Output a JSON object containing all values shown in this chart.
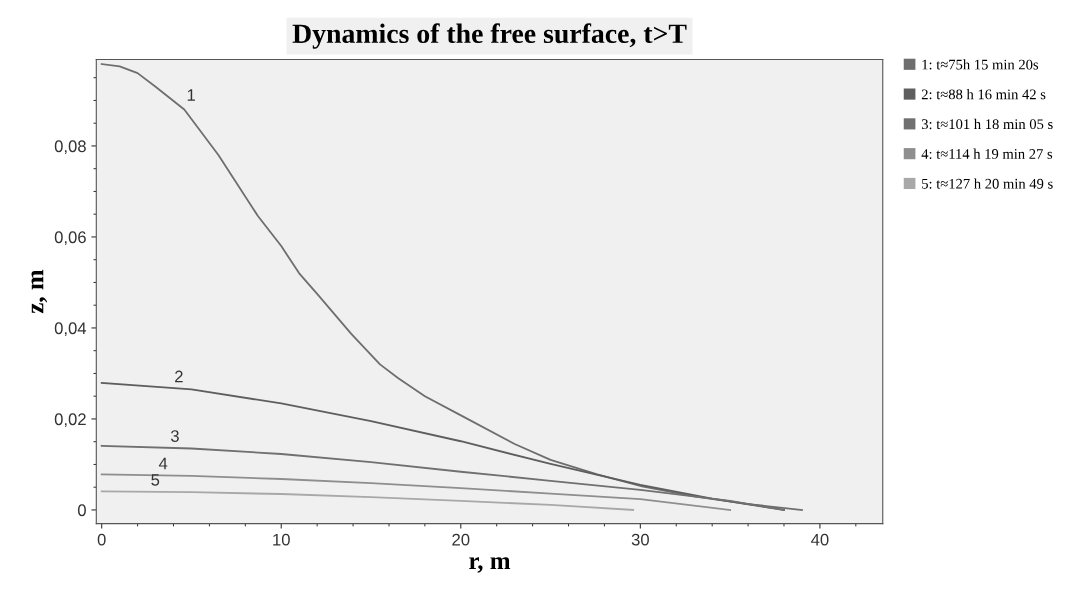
{
  "chart_data": {
    "type": "line",
    "title": "Dynamics of the free surface, t>T",
    "xlabel": "r, m",
    "ylabel": "z, m",
    "xlim": [
      -0.3,
      43.5
    ],
    "ylim": [
      -0.003,
      0.099
    ],
    "xticks": [
      0,
      10,
      20,
      30,
      40
    ],
    "yticks": [
      {
        "value": 0,
        "label": "0"
      },
      {
        "value": 0.02,
        "label": "0,02"
      },
      {
        "value": 0.04,
        "label": "0,04"
      },
      {
        "value": 0.06,
        "label": "0,06"
      },
      {
        "value": 0.08,
        "label": "0,08"
      }
    ],
    "grid": false,
    "legend": "right",
    "marker": "none",
    "line_style": "solid",
    "series": [
      {
        "name": "1: t≈75h 15 min 20s",
        "color": "#6e6e6e",
        "x": [
          0,
          1,
          2,
          3,
          4.6,
          6.5,
          8.7,
          10,
          11,
          12,
          13.9,
          15.5,
          16.5,
          18,
          19.9,
          23,
          25,
          27.6,
          30.1,
          33,
          36,
          39
        ],
        "values": [
          0.098,
          0.0975,
          0.096,
          0.093,
          0.088,
          0.078,
          0.0646,
          0.058,
          0.052,
          0.0475,
          0.0387,
          0.032,
          0.029,
          0.025,
          0.021,
          0.0145,
          0.011,
          0.0078,
          0.0052,
          0.003,
          0.0013,
          0
        ]
      },
      {
        "name": "2: t≈88 h 16 min 42 s",
        "color": "#5e5e5e",
        "x": [
          0,
          5,
          10,
          15,
          20,
          25,
          30,
          34,
          38
        ],
        "values": [
          0.0279,
          0.0265,
          0.0234,
          0.0195,
          0.0151,
          0.0101,
          0.0055,
          0.0025,
          0
        ]
      },
      {
        "name": "3: t≈101 h 18 min 05 s",
        "color": "#707070",
        "x": [
          0,
          5,
          10,
          15,
          20,
          25,
          30,
          35,
          38
        ],
        "values": [
          0.0141,
          0.0135,
          0.0123,
          0.0105,
          0.0084,
          0.0064,
          0.0044,
          0.002,
          0
        ]
      },
      {
        "name": "4: t≈114 h 19 min 27 s",
        "color": "#8e8e8e",
        "x": [
          0,
          5,
          10,
          15,
          20,
          25,
          30,
          35
        ],
        "values": [
          0.0078,
          0.0075,
          0.0068,
          0.0059,
          0.0048,
          0.0036,
          0.0024,
          0
        ]
      },
      {
        "name": "5: t≈127 h 20 min 49 s",
        "color": "#a8a8a8",
        "x": [
          0,
          5,
          10,
          15,
          20,
          25,
          29.6
        ],
        "values": [
          0.0041,
          0.0039,
          0.0035,
          0.0028,
          0.002,
          0.0011,
          0
        ]
      }
    ],
    "annotations": [
      "1",
      "2",
      "3",
      "4",
      "5"
    ]
  }
}
